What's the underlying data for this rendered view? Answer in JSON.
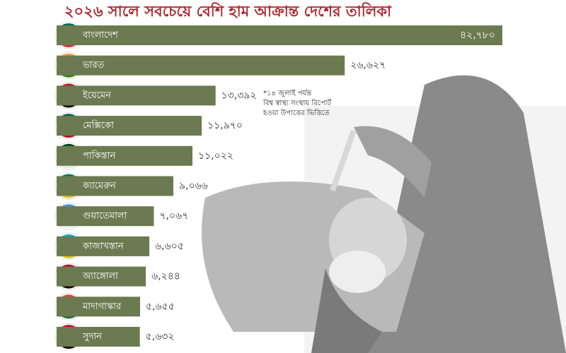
{
  "chart_data": {
    "type": "bar",
    "orientation": "horizontal",
    "title": "২০২৬ সালে সবচেয়ে বেশি হাম আক্রান্ত দেশের তালিকা",
    "categories": [
      "বাংলাদেশ",
      "ভারত",
      "ইয়েমেন",
      "মেক্সিকো",
      "পাকিস্তান",
      "ক্যামেরুন",
      "গুয়াতেমালা",
      "কাজাখস্তান",
      "অ্যাঙ্গোলা",
      "মাদাগাস্কার",
      "সুদান"
    ],
    "values": [
      42780,
      26627,
      13392,
      11970,
      11022,
      9066,
      7067,
      6605,
      6244,
      5655,
      5632
    ],
    "value_labels": [
      "৪২,৭৮০",
      "২৬,৬২৭",
      "১৩,৩৯২",
      "১১,৯৭০",
      "১১,০২২",
      "৯,০৬৬",
      "৭,০৬৭",
      "৬,৬০৫",
      "৬,২৪৪",
      "৫,৬৫৫",
      "৫,৬৩২"
    ],
    "color": "#6b7a50",
    "annotation": [
      "*১৪ জুলাই পর্যন্ত",
      "বিশ্ব স্বাস্থ্য সংস্থায় রিপোর্ট",
      "হওয়া উপাত্তের ভিত্তিতে"
    ]
  }
}
